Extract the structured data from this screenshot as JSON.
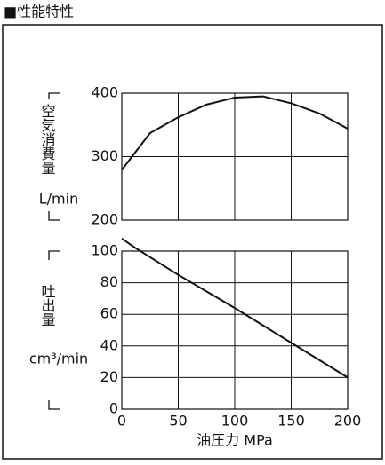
{
  "title": "■性能特性",
  "chart_data": [
    {
      "type": "line",
      "ylabel": "空気消費量",
      "unit": "L/min",
      "x": [
        0,
        25,
        50,
        75,
        100,
        125,
        150,
        175,
        200
      ],
      "series": [
        {
          "name": null,
          "color": "#111111",
          "values": [
            279,
            337,
            362,
            382,
            393,
            395,
            384,
            368,
            344
          ]
        }
      ],
      "xlim": [
        0,
        200
      ],
      "ylim": [
        200,
        400
      ],
      "yticks": [
        200,
        300,
        400
      ],
      "grid": true
    },
    {
      "type": "line",
      "ylabel": "吐出量",
      "unit": "cm³/min",
      "xlabel": "油圧力 MPa",
      "x": [
        0,
        12,
        50,
        100,
        150,
        200
      ],
      "series": [
        {
          "name": null,
          "color": "#111111",
          "values": [
            108,
            102,
            85,
            64,
            42,
            20
          ]
        }
      ],
      "xlim": [
        0,
        200
      ],
      "xticks": [
        0,
        50,
        100,
        150,
        200
      ],
      "ylim": [
        0,
        100
      ],
      "yticks": [
        0,
        20,
        40,
        60,
        80,
        100
      ],
      "grid": true
    }
  ]
}
